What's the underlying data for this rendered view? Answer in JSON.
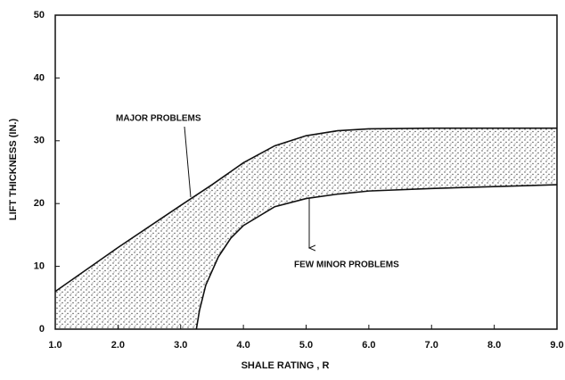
{
  "chart_data": {
    "type": "band",
    "xlabel": "SHALE RATING , R",
    "ylabel": "LIFT THICKNESS (IN.)",
    "annotations": [
      "MAJOR PROBLEMS",
      "FEW MINOR PROBLEMS"
    ],
    "series": [
      {
        "x": [
          1.0,
          2.0,
          3.0,
          3.5,
          4.0,
          4.5,
          5.0,
          5.5,
          6.0,
          7.0,
          8.0,
          9.0
        ],
        "values": [
          6,
          13,
          19.7,
          23,
          26.5,
          29.2,
          30.8,
          31.6,
          31.9,
          32,
          32,
          32
        ],
        "color": "#111111"
      },
      {
        "x": [
          3.25,
          3.3,
          3.4,
          3.6,
          3.8,
          4.0,
          4.5,
          5.0,
          5.5,
          6.0,
          7.0,
          8.0,
          9.0
        ],
        "values": [
          0,
          3,
          7,
          11.5,
          14.5,
          16.5,
          19.5,
          20.8,
          21.5,
          22,
          22.4,
          22.7,
          23
        ],
        "color": "#111111"
      }
    ],
    "fill_color": "#444444",
    "xlim": [
      1.0,
      9.0
    ],
    "xticks": [
      {
        "value": 1,
        "label": "1.0"
      },
      {
        "value": 2,
        "label": "2.0"
      },
      {
        "value": 3,
        "label": "3.0"
      },
      {
        "value": 4,
        "label": "4.0"
      },
      {
        "value": 5,
        "label": "5.0"
      },
      {
        "value": 6,
        "label": "6.0"
      },
      {
        "value": 7,
        "label": "7.0"
      },
      {
        "value": 8,
        "label": "8.0"
      },
      {
        "value": 9,
        "label": "9.0"
      }
    ],
    "ylim": [
      0,
      50
    ],
    "yticks": [
      0,
      10,
      20,
      30,
      40,
      50
    ]
  }
}
